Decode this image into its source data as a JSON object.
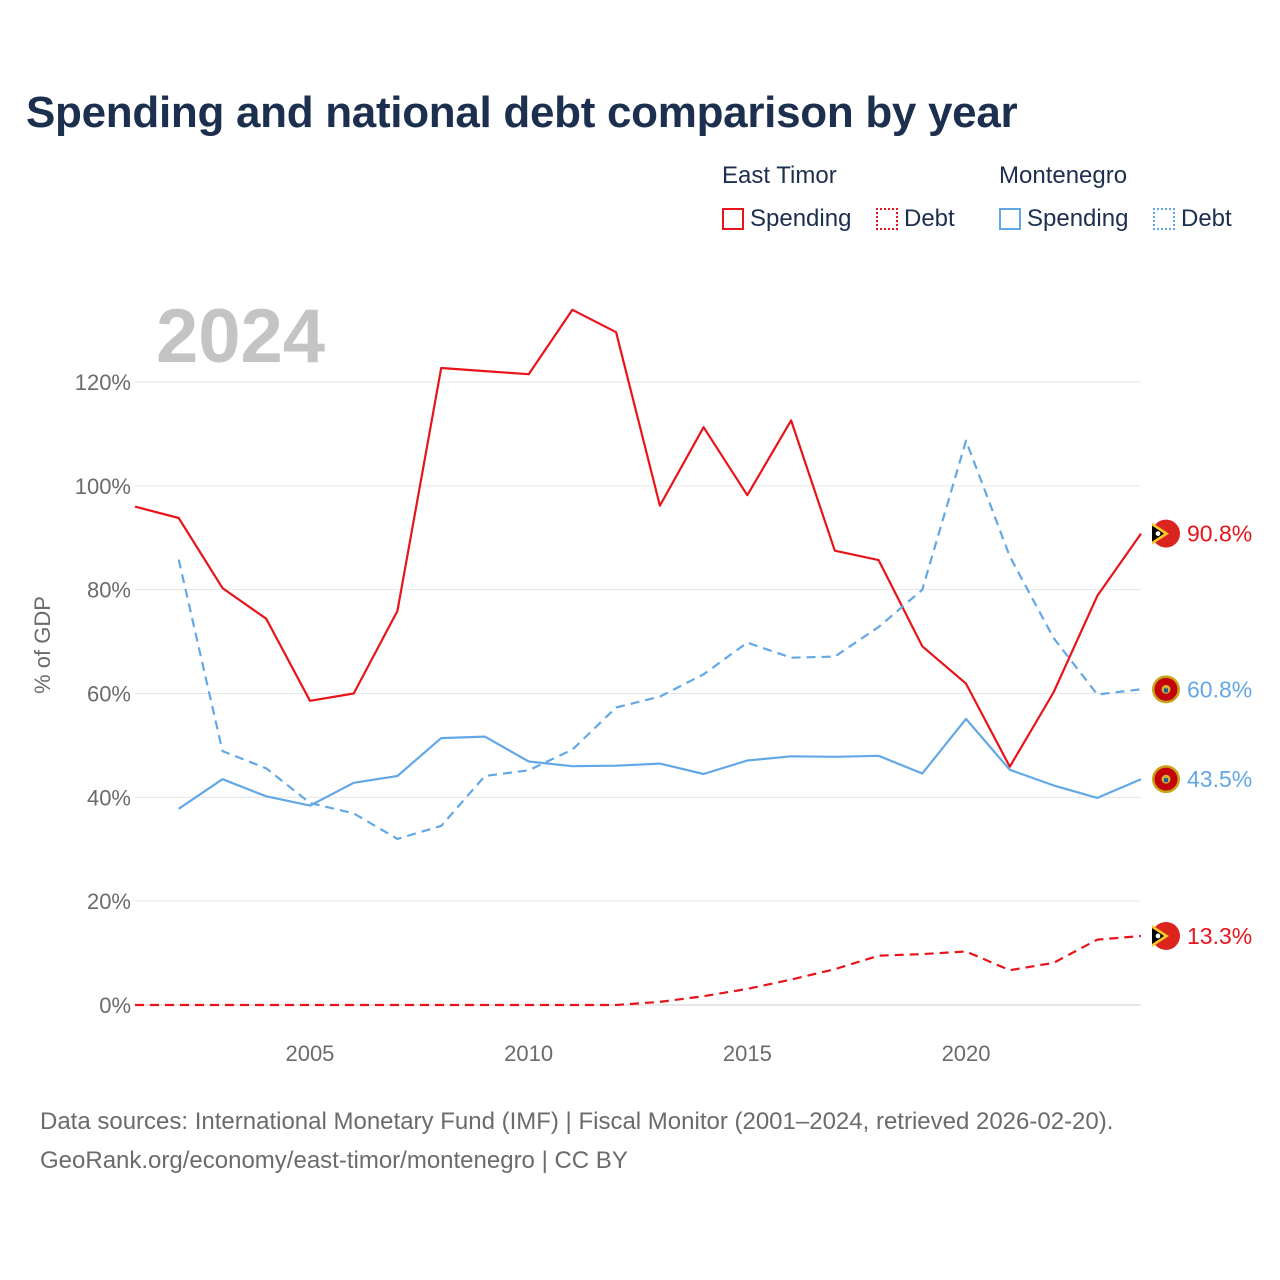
{
  "title": "Spending and national debt comparison by year",
  "legend": {
    "groups": [
      {
        "country": "East Timor",
        "items": [
          {
            "label": "Spending",
            "style": "solid",
            "color": "#e8141a"
          },
          {
            "label": "Debt",
            "style": "dotted",
            "color": "#e8141a"
          }
        ]
      },
      {
        "country": "Montenegro",
        "items": [
          {
            "label": "Spending",
            "style": "solid",
            "color": "#63a8e6"
          },
          {
            "label": "Debt",
            "style": "dotted",
            "color": "#63a8e6"
          }
        ]
      }
    ]
  },
  "chart_data": {
    "type": "line",
    "year_label": "2024",
    "ylabel": "% of GDP",
    "xlim": [
      2001,
      2024
    ],
    "ylim": [
      0,
      130
    ],
    "xticks": [
      {
        "value": 2005,
        "label": "2005"
      },
      {
        "value": 2010,
        "label": "2010"
      },
      {
        "value": 2015,
        "label": "2015"
      },
      {
        "value": 2020,
        "label": "2020"
      }
    ],
    "yticks": [
      {
        "value": 0,
        "label": "0%"
      },
      {
        "value": 20,
        "label": "20%"
      },
      {
        "value": 40,
        "label": "40%"
      },
      {
        "value": 60,
        "label": "60%"
      },
      {
        "value": 80,
        "label": "80%"
      },
      {
        "value": 100,
        "label": "100%"
      },
      {
        "value": 120,
        "label": "120%"
      }
    ],
    "grid": true,
    "series": [
      {
        "name": "East Timor Spending",
        "country": "East Timor",
        "color": "#e8141a",
        "dashed": false,
        "x": [
          2001,
          2002,
          2003,
          2004,
          2005,
          2006,
          2007,
          2008,
          2009,
          2010,
          2011,
          2012,
          2013,
          2014,
          2015,
          2016,
          2017,
          2018,
          2019,
          2020,
          2021,
          2022,
          2023,
          2024
        ],
        "values": [
          96.0,
          93.8,
          80.3,
          74.4,
          58.6,
          60.0,
          75.9,
          122.7,
          122.1,
          121.5,
          133.9,
          129.6,
          96.2,
          111.3,
          98.2,
          112.6,
          87.5,
          85.7,
          69.1,
          61.9,
          45.9,
          60.2,
          78.8,
          90.8
        ],
        "end_label": "90.8%"
      },
      {
        "name": "East Timor Debt",
        "country": "East Timor",
        "color": "#e8141a",
        "dashed": true,
        "x": [
          2001,
          2002,
          2003,
          2004,
          2005,
          2006,
          2007,
          2008,
          2009,
          2010,
          2011,
          2012,
          2013,
          2014,
          2015,
          2016,
          2017,
          2018,
          2019,
          2020,
          2021,
          2022,
          2023,
          2024
        ],
        "values": [
          0,
          0,
          0,
          0,
          0,
          0,
          0,
          0,
          0,
          0,
          0,
          0,
          0.6,
          1.7,
          3.1,
          4.9,
          6.9,
          9.5,
          9.8,
          10.3,
          6.7,
          8.1,
          12.6,
          13.3
        ],
        "end_label": "13.3%"
      },
      {
        "name": "Montenegro Spending",
        "country": "Montenegro",
        "color": "#63a8e6",
        "dashed": false,
        "x": [
          2002,
          2003,
          2004,
          2005,
          2006,
          2007,
          2008,
          2009,
          2010,
          2011,
          2012,
          2013,
          2014,
          2015,
          2016,
          2017,
          2018,
          2019,
          2020,
          2021,
          2022,
          2023,
          2024
        ],
        "values": [
          37.8,
          43.5,
          40.2,
          38.4,
          42.8,
          44.1,
          51.4,
          51.7,
          46.9,
          46.0,
          46.1,
          46.5,
          44.5,
          47.1,
          47.9,
          47.8,
          48.0,
          44.6,
          55.1,
          45.3,
          42.3,
          39.9,
          43.5
        ],
        "end_label": "43.5%"
      },
      {
        "name": "Montenegro Debt",
        "country": "Montenegro",
        "color": "#63a8e6",
        "dashed": true,
        "x": [
          2002,
          2003,
          2004,
          2005,
          2006,
          2007,
          2008,
          2009,
          2010,
          2011,
          2012,
          2013,
          2014,
          2015,
          2016,
          2017,
          2018,
          2019,
          2020,
          2021,
          2022,
          2023,
          2024
        ],
        "values": [
          85.8,
          48.9,
          45.6,
          38.9,
          36.9,
          32.0,
          34.5,
          44.1,
          45.2,
          49.2,
          57.3,
          59.4,
          63.7,
          69.8,
          66.9,
          67.1,
          72.8,
          80.0,
          108.7,
          86.4,
          70.7,
          59.8,
          60.8
        ],
        "end_label": "60.8%"
      }
    ]
  },
  "footer": {
    "line1": "Data sources: International Monetary Fund (IMF) | Fiscal Monitor (2001–2024, retrieved 2026-02-20).",
    "line2": "GeoRank.org/economy/east-timor/montenegro | CC BY"
  }
}
